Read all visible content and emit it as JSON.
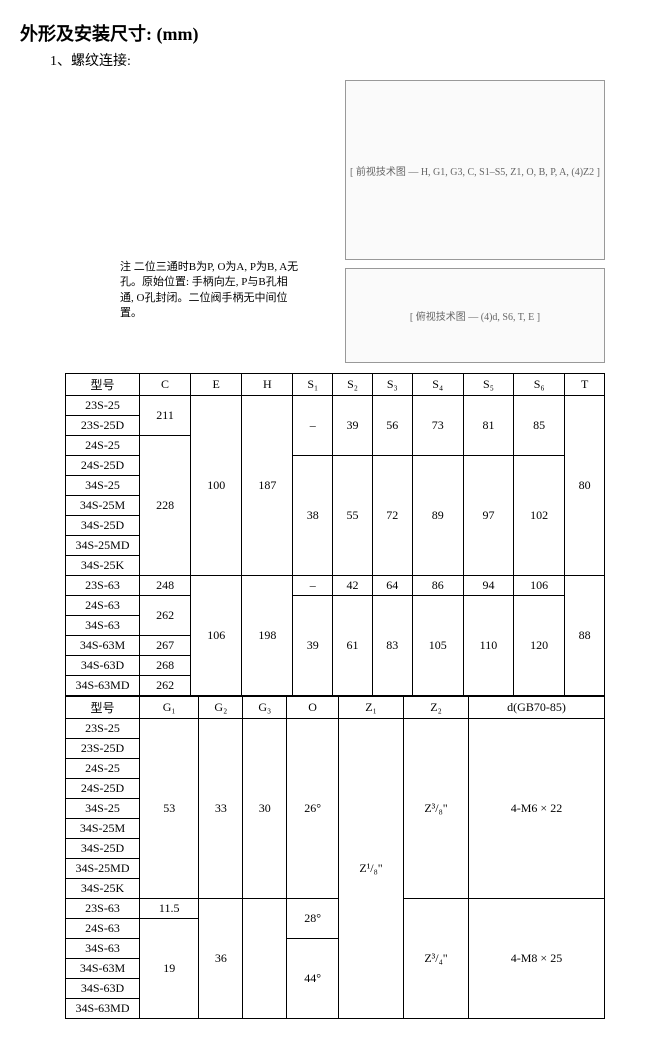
{
  "title": "外形及安装尺寸: (mm)",
  "subtitle": "1、螺纹连接:",
  "note": "注 二位三通时B为P, O为A, P为B, A无孔。原始位置: 手柄向左, P与B孔相通, O孔封闭。二位阀手柄无中间位置。",
  "diagram1_label": "[ 前视技术图 — H, G1, G3, C, S1–S5, Z1, O, B, P, A, (4)Z2 ]",
  "diagram2_label": "[ 俯视技术图 — (4)d, S6, T, E ]",
  "table1": {
    "header_model": "型号",
    "cols": [
      "C",
      "E",
      "H",
      "S₁",
      "S₂",
      "S₃",
      "S₄",
      "S₅",
      "S₆",
      "T"
    ],
    "models": [
      "23S-25",
      "23S-25D",
      "24S-25",
      "24S-25D",
      "34S-25",
      "34S-25M",
      "34S-25D",
      "34S-25MD",
      "34S-25K",
      "23S-63",
      "24S-63",
      "34S-63",
      "34S-63M",
      "34S-63D",
      "34S-63MD"
    ],
    "block1": {
      "C": "211",
      "E": "100",
      "H": "187",
      "S1": "–",
      "S2": "39",
      "S3": "56",
      "S4": "73",
      "S5": "81",
      "S6": "85",
      "T": "80"
    },
    "block2": {
      "C": "228",
      "S1": "38",
      "S2": "55",
      "S3": "72",
      "S4": "89",
      "S5": "97",
      "S6": "102"
    },
    "block3row1": {
      "C": "248",
      "S1": "–",
      "S2": "42",
      "S3": "64",
      "S4": "86",
      "S5": "94",
      "S6": "106",
      "T": "88"
    },
    "block3row2": {
      "C": "262",
      "E": "106",
      "H": "198",
      "S1": "39",
      "S2": "61",
      "S3": "83",
      "S4": "105",
      "S5": "110",
      "S6": "120"
    },
    "block3row4": {
      "C": "267"
    },
    "block3row5": {
      "C": "268"
    },
    "block3row6": {
      "C": "262"
    }
  },
  "table2": {
    "header_model": "型号",
    "cols": [
      "G₁",
      "G₂",
      "G₃",
      "O",
      "Z₁",
      "Z₂",
      "d(GB70-85)"
    ],
    "models": [
      "23S-25",
      "23S-25D",
      "24S-25",
      "24S-25D",
      "34S-25",
      "34S-25M",
      "34S-25D",
      "34S-25MD",
      "34S-25K",
      "23S-63",
      "24S-63",
      "34S-63",
      "34S-63M",
      "34S-63D",
      "34S-63MD"
    ],
    "blockA": {
      "G1": "53",
      "G2": "33",
      "G3": "30",
      "O": "26°",
      "Z1": "Z¹/₈\"",
      "Z2": "Z³/₈\"",
      "d": "4-M6 × 22"
    },
    "blockB_row1": {
      "G1": "11.5"
    },
    "blockB": {
      "G1": "19",
      "G2": "36",
      "O1": "28°",
      "O2": "44°",
      "Z2": "Z³/₄\"",
      "d": "4-M8 × 25"
    }
  }
}
